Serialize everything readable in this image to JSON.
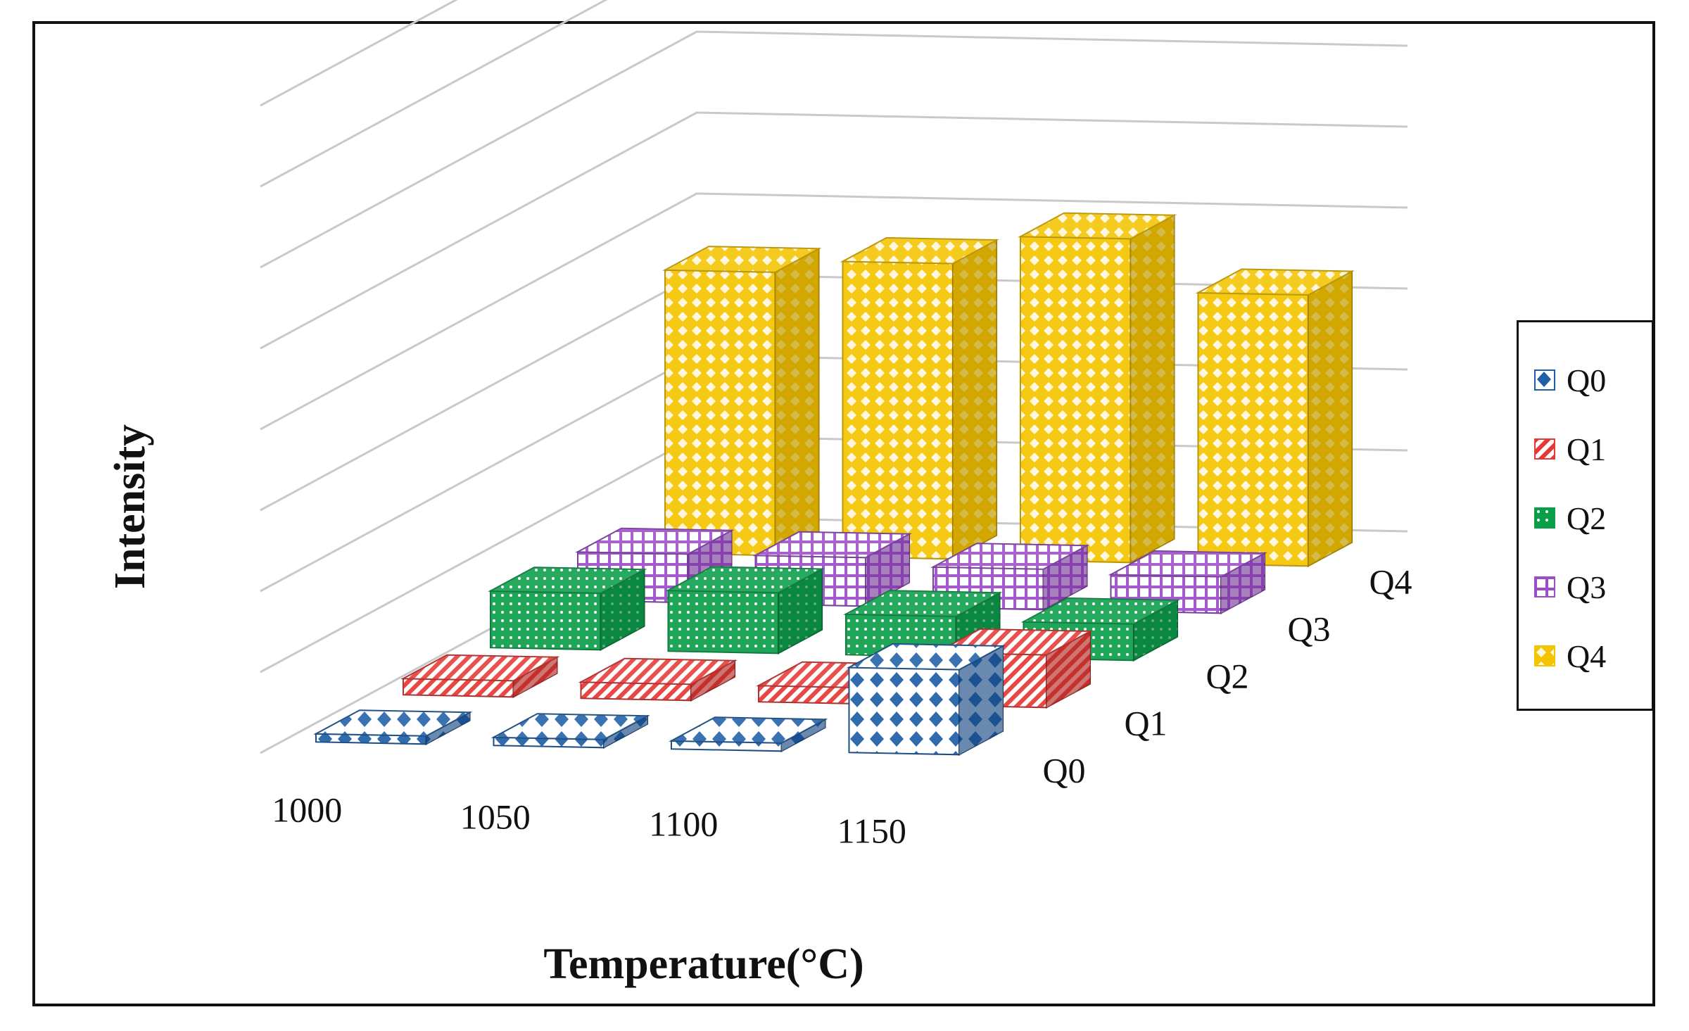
{
  "chart_data": {
    "type": "bar",
    "subtype": "3d-column",
    "title": "",
    "xlabel": "Temperature(°C)",
    "ylabel": "Intensity",
    "categories": [
      "1000",
      "1050",
      "1100",
      "1150"
    ],
    "depth_labels": [
      "Q0",
      "Q1",
      "Q2",
      "Q3",
      "Q4"
    ],
    "ylim": [
      0,
      8
    ],
    "grid": true,
    "legend_position": "right",
    "series": [
      {
        "name": "Q0",
        "color": "#1f5fa8",
        "values": [
          0.1,
          0.1,
          0.1,
          1.05
        ]
      },
      {
        "name": "Q1",
        "color": "#e53935",
        "values": [
          0.2,
          0.2,
          0.2,
          0.65
        ]
      },
      {
        "name": "Q2",
        "color": "#0b9e4a",
        "values": [
          0.7,
          0.75,
          0.5,
          0.45
        ]
      },
      {
        "name": "Q3",
        "color": "#9b4dca",
        "values": [
          0.6,
          0.6,
          0.5,
          0.45
        ]
      },
      {
        "name": "Q4",
        "color": "#f5c400",
        "values": [
          3.5,
          3.65,
          4.0,
          3.35
        ]
      }
    ]
  }
}
